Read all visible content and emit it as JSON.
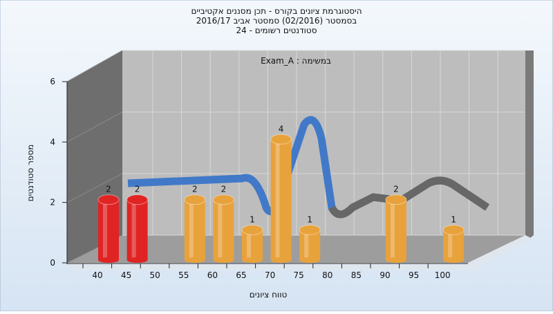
{
  "chart_data": {
    "type": "bar",
    "title": [
      "היסטוגרמת ציונים בקורס - תכן מסננים אקטיביים",
      "בסמסטר  (02/2016)  סמסטר אביב 2016/17",
      "סטודנטים רשומים - 24"
    ],
    "subtitle": "Exam_A : במשימה",
    "x_label": "טווח ציונים",
    "y_label": "מספר סטודנטים",
    "categories": [
      "40",
      "45",
      "50",
      "55",
      "60",
      "65",
      "70",
      "75",
      "80",
      "85",
      "90",
      "95",
      "100"
    ],
    "values": [
      2,
      2,
      0,
      2,
      2,
      1,
      4,
      1,
      0,
      0,
      2,
      0,
      1
    ],
    "colors": [
      "#e02424",
      "#e02424",
      "#e8a23c",
      "#e8a23c",
      "#e8a23c",
      "#e8a23c",
      "#e8a23c",
      "#e8a23c",
      "#e8a23c",
      "#e8a23c",
      "#e8a23c",
      "#e8a23c",
      "#e8a23c"
    ],
    "ylim": [
      0,
      6
    ],
    "yticks": [
      0,
      2,
      4,
      6
    ],
    "grid": true
  }
}
